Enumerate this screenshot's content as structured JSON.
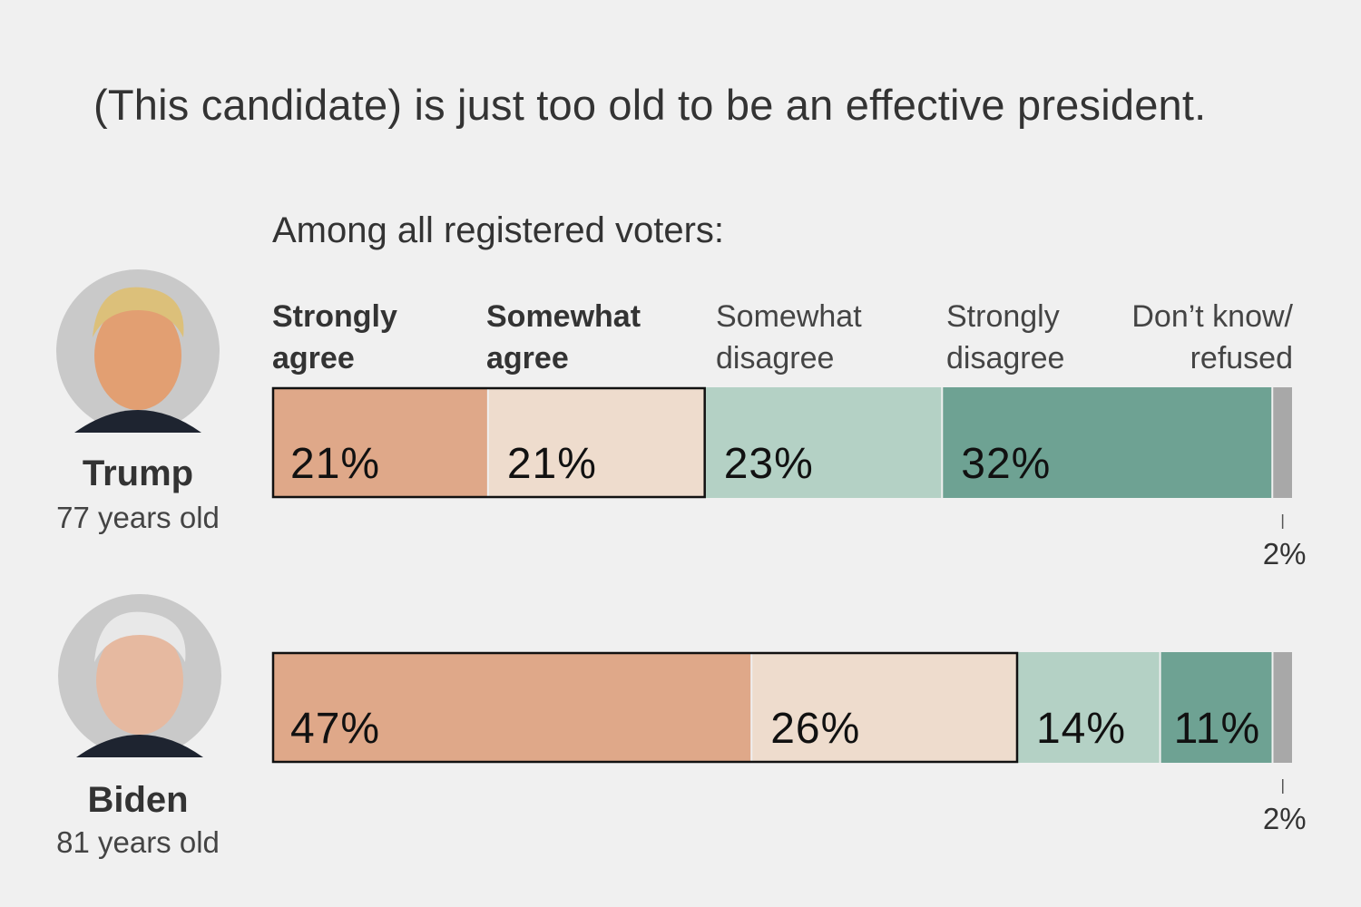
{
  "title": "(This candidate) is just too old to be an effective president.",
  "subtitle": "Among all registered voters:",
  "candidates": [
    {
      "name": "Trump",
      "age": "77 years old"
    },
    {
      "name": "Biden",
      "age": "81 years old"
    }
  ],
  "chart_data": {
    "type": "bar",
    "orientation": "horizontal-stacked",
    "categories": [
      "Trump",
      "Biden"
    ],
    "series": [
      {
        "name": "Strongly agree",
        "label": [
          "Strongly",
          "agree"
        ],
        "bold": true,
        "values": [
          21,
          47
        ],
        "color": "#dfa889"
      },
      {
        "name": "Somewhat agree",
        "label": [
          "Somewhat",
          "agree"
        ],
        "bold": true,
        "values": [
          21,
          26
        ],
        "color": "#eedccd"
      },
      {
        "name": "Somewhat disagree",
        "label": [
          "Somewhat",
          "disagree"
        ],
        "bold": false,
        "values": [
          23,
          14
        ],
        "color": "#b4d1c5"
      },
      {
        "name": "Strongly disagree",
        "label": [
          "Strongly",
          "disagree"
        ],
        "bold": false,
        "values": [
          32,
          11
        ],
        "color": "#6ea293"
      },
      {
        "name": "Don't know/refused",
        "label": [
          "Don’t know/",
          "refused"
        ],
        "bold": false,
        "values": [
          2,
          2
        ],
        "color": "#a8a8a8"
      }
    ],
    "data_labels": [
      [
        "21%",
        "21%",
        "23%",
        "32%",
        "2%"
      ],
      [
        "47%",
        "26%",
        "14%",
        "11%",
        "2%"
      ]
    ],
    "unit": "%"
  }
}
